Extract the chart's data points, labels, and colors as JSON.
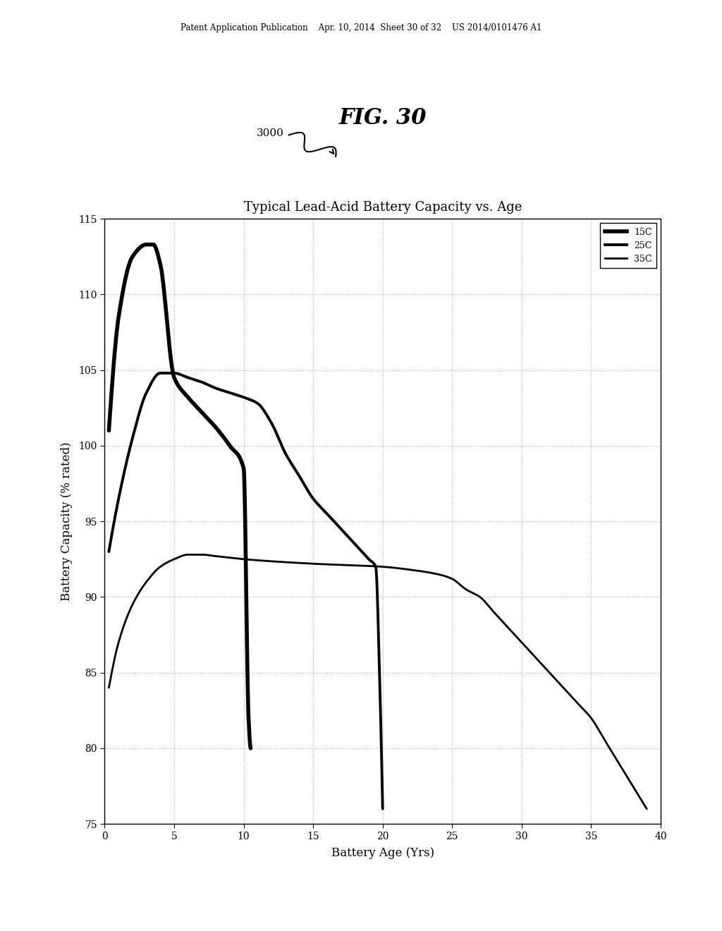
{
  "title": "Typical Lead-Acid Battery Capacity vs. Age",
  "xlabel": "Battery Age (Yrs)",
  "ylabel": "Battery Capacity (% rated)",
  "fig_label": "FIG. 30",
  "fig_number": "3000",
  "xlim": [
    0,
    40
  ],
  "ylim": [
    75,
    115
  ],
  "xticks": [
    0,
    5,
    10,
    15,
    20,
    25,
    30,
    35,
    40
  ],
  "yticks": [
    75,
    80,
    85,
    90,
    95,
    100,
    105,
    110,
    115
  ],
  "legend_labels": [
    "15C",
    "25C",
    "35C"
  ],
  "background_color": "#ffffff",
  "header_text": "Patent Application Publication    Apr. 10, 2014  Sheet 30 of 32    US 2014/0101476 A1",
  "curve_15C_x": [
    0.3,
    1.0,
    2.0,
    3.0,
    3.5,
    4.0,
    5.0,
    6.0,
    7.0,
    8.0,
    9.0,
    10.0,
    10.35,
    10.5
  ],
  "curve_15C_y": [
    101.0,
    108.5,
    112.5,
    113.3,
    113.3,
    112.0,
    104.5,
    103.2,
    102.2,
    101.2,
    100.0,
    98.5,
    82.0,
    80.0
  ],
  "curve_25C_x": [
    0.3,
    1.0,
    2.0,
    3.0,
    4.0,
    5.0,
    6.0,
    7.0,
    8.0,
    9.0,
    10.0,
    11.0,
    12.0,
    13.0,
    14.0,
    15.0,
    16.0,
    17.0,
    18.0,
    19.0,
    19.5,
    19.8,
    20.0
  ],
  "curve_25C_y": [
    93.0,
    96.5,
    100.5,
    103.5,
    104.8,
    104.8,
    104.5,
    104.2,
    103.8,
    103.5,
    103.2,
    102.8,
    101.5,
    99.5,
    98.0,
    96.5,
    95.5,
    94.5,
    93.5,
    92.5,
    92.0,
    84.0,
    76.0
  ],
  "curve_35C_x": [
    0.3,
    1.0,
    2.0,
    3.0,
    4.0,
    5.0,
    6.0,
    7.0,
    8.0,
    10.0,
    15.0,
    20.0,
    22.0,
    24.0,
    25.0,
    26.0,
    27.0,
    28.0,
    29.0,
    30.0,
    31.0,
    32.0,
    33.0,
    34.0,
    35.0,
    36.0,
    37.0,
    38.0,
    39.0
  ],
  "curve_35C_y": [
    84.0,
    87.0,
    89.5,
    91.0,
    92.0,
    92.5,
    92.8,
    92.8,
    92.7,
    92.5,
    92.2,
    92.0,
    91.8,
    91.5,
    91.2,
    90.5,
    90.0,
    89.0,
    88.0,
    87.0,
    86.0,
    85.0,
    84.0,
    83.0,
    82.0,
    80.5,
    79.0,
    77.5,
    76.0
  ]
}
